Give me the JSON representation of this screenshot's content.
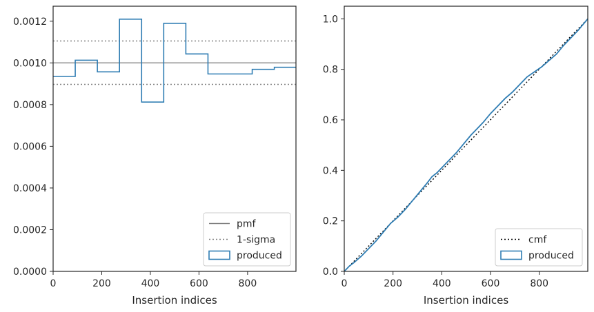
{
  "chart_data": [
    {
      "type": "histogram",
      "xlabel": "Insertion indices",
      "ylabel": "",
      "xlim": [
        0,
        999
      ],
      "ylim": [
        0,
        0.001272
      ],
      "x_ticks": [
        0,
        200,
        400,
        600,
        800
      ],
      "x_tick_labels": [
        "0",
        "200",
        "400",
        "600",
        "800"
      ],
      "y_ticks": [
        0,
        0.0002,
        0.0004,
        0.0006,
        0.0008,
        0.001,
        0.0012
      ],
      "y_tick_labels": [
        "0.0000",
        "0.0002",
        "0.0004",
        "0.0006",
        "0.0008",
        "0.0010",
        "0.0012"
      ],
      "grid": false,
      "legend_location": "lower right",
      "series": [
        {
          "name": "pmf",
          "kind": "horizontal-line",
          "value": 0.001,
          "color": "#808080",
          "linestyle": "solid"
        },
        {
          "name": "1-sigma",
          "kind": "horizontal-lines",
          "values": [
            0.000897,
            0.001105
          ],
          "color": "#808080",
          "linestyle": "dotted"
        },
        {
          "name": "produced",
          "kind": "step-histogram",
          "bin_edges": [
            0,
            91,
            182,
            273,
            364,
            455,
            546,
            637,
            728,
            819,
            910,
            999
          ],
          "values": [
            0.000935,
            0.001013,
            0.000957,
            0.00121,
            0.000812,
            0.00119,
            0.001043,
            0.000947,
            0.000947,
            0.000969,
            0.000979
          ],
          "color": "#2f7db3",
          "linestyle": "solid"
        }
      ]
    },
    {
      "type": "line",
      "xlabel": "Insertion indices",
      "ylabel": "",
      "xlim": [
        0,
        999
      ],
      "ylim": [
        0,
        1.05
      ],
      "x_ticks": [
        0,
        200,
        400,
        600,
        800
      ],
      "x_tick_labels": [
        "0",
        "200",
        "400",
        "600",
        "800"
      ],
      "y_ticks": [
        0,
        0.2,
        0.4,
        0.6,
        0.8,
        1.0
      ],
      "y_tick_labels": [
        "0.0",
        "0.2",
        "0.4",
        "0.6",
        "0.8",
        "1.0"
      ],
      "grid": false,
      "legend_location": "lower right",
      "series": [
        {
          "name": "cmf",
          "x": [
            0,
            999
          ],
          "y": [
            0,
            1.0
          ],
          "color": "#000000",
          "linestyle": "dotted"
        },
        {
          "name": "produced",
          "x": [
            0,
            20,
            40,
            70,
            100,
            130,
            160,
            190,
            220,
            250,
            280,
            310,
            340,
            360,
            380,
            400,
            430,
            460,
            490,
            520,
            545,
            570,
            600,
            630,
            660,
            690,
            720,
            750,
            780,
            810,
            840,
            870,
            900,
            930,
            960,
            999
          ],
          "y": [
            0,
            0.02,
            0.035,
            0.06,
            0.09,
            0.12,
            0.155,
            0.19,
            0.215,
            0.245,
            0.28,
            0.315,
            0.35,
            0.375,
            0.39,
            0.41,
            0.44,
            0.47,
            0.505,
            0.54,
            0.565,
            0.59,
            0.625,
            0.655,
            0.685,
            0.71,
            0.74,
            0.77,
            0.79,
            0.81,
            0.835,
            0.86,
            0.895,
            0.925,
            0.955,
            1.0
          ],
          "color": "#2f7db3",
          "linestyle": "solid"
        }
      ]
    }
  ]
}
